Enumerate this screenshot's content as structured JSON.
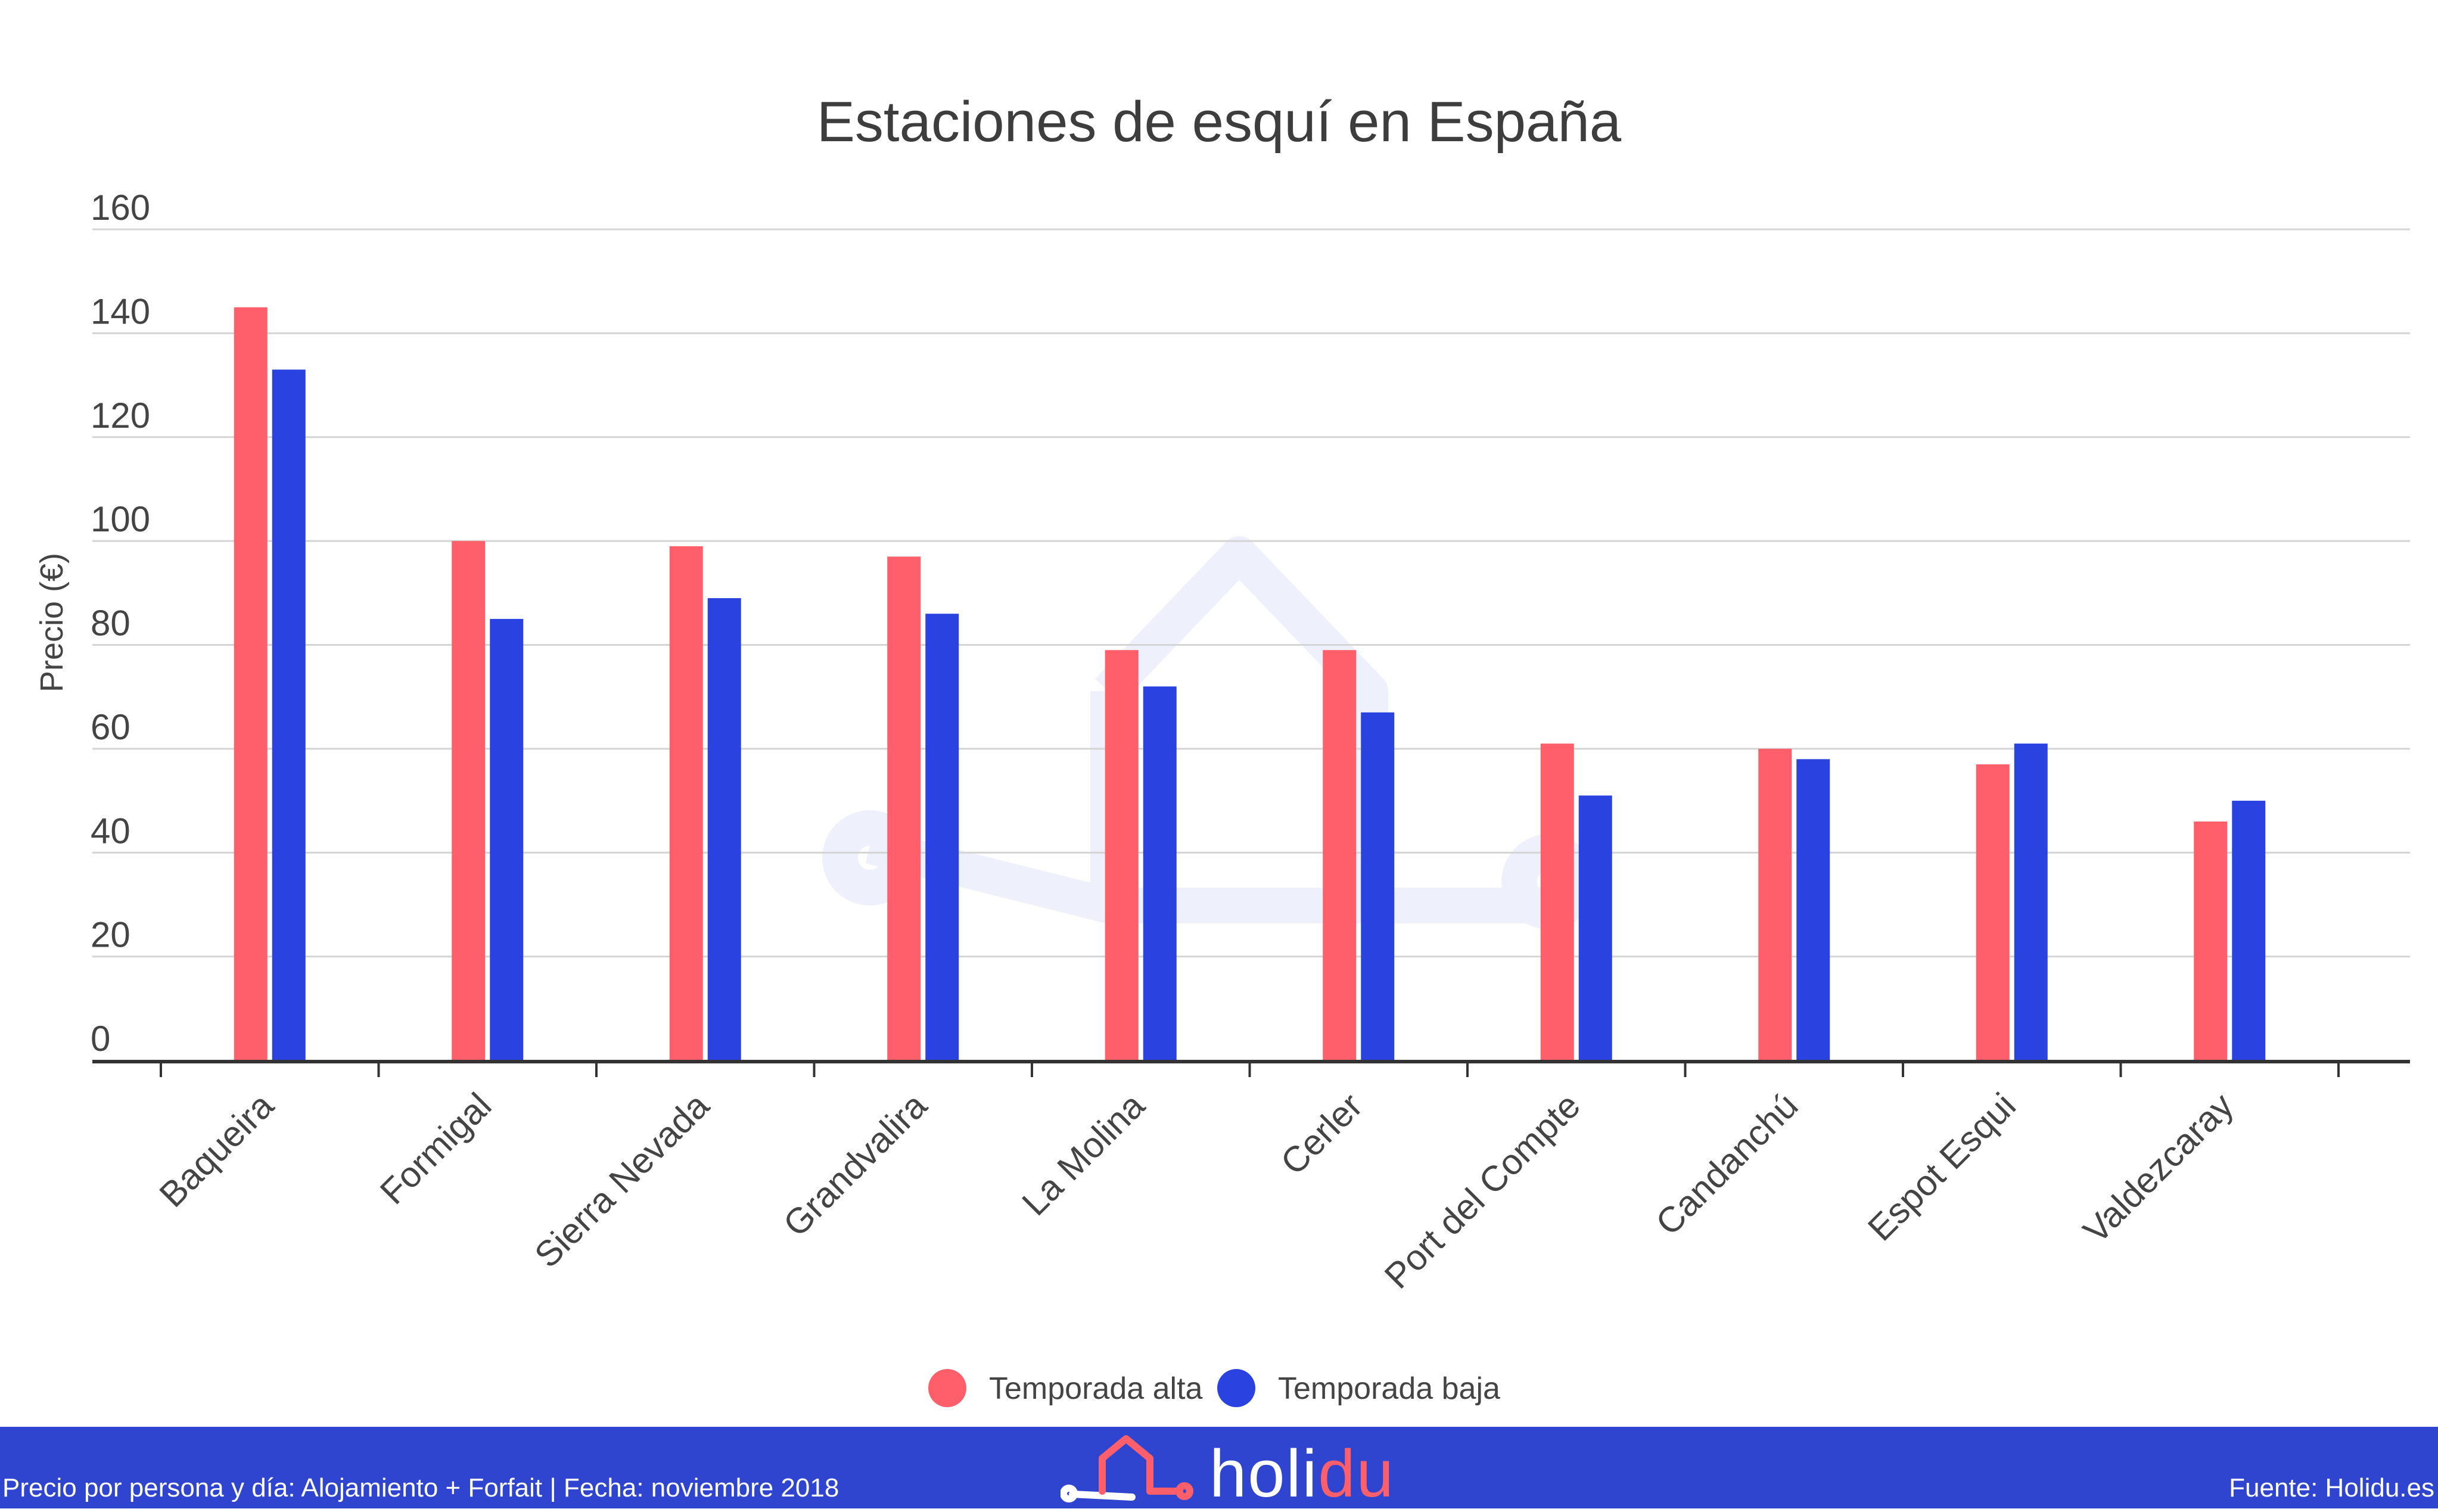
{
  "colors": {
    "series_alta": "#ff5f6a",
    "series_baja": "#2a43e0",
    "footer_bg": "#2f45d0",
    "brand_accent": "#ff5f6a"
  },
  "chart_data": {
    "type": "bar",
    "title": "Estaciones de esquí en España",
    "ylabel": "Precio (€)",
    "xlabel": "",
    "ylim": [
      0,
      160
    ],
    "yticks": [
      0,
      20,
      40,
      60,
      80,
      100,
      120,
      140,
      160
    ],
    "grid": true,
    "legend_position": "bottom-center",
    "categories": [
      "Baqueira",
      "Formigal",
      "Sierra Nevada",
      "Grandvalira",
      "La Molina",
      "Cerler",
      "Port del Compte",
      "Candanchú",
      "Espot Esqui",
      "Valdezcaray"
    ],
    "series": [
      {
        "name": "Temporada alta",
        "values": [
          145,
          100,
          99,
          97,
          79,
          79,
          61,
          60,
          57,
          46
        ]
      },
      {
        "name": "Temporada baja",
        "values": [
          133,
          85,
          89,
          86,
          72,
          67,
          51,
          58,
          61,
          50
        ]
      }
    ]
  },
  "footer": {
    "note": "Precio por persona y día: Alojamiento + Forfait | Fecha: noviembre 2018",
    "source": "Fuente: Holidu.es",
    "brand_main": "holi",
    "brand_accent": "du",
    "logo_icon": "house-logo-icon"
  }
}
